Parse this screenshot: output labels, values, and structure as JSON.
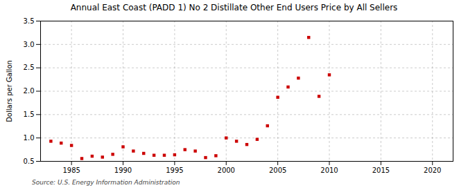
{
  "chart_data": {
    "type": "scatter",
    "title": "Annual East Coast (PADD 1) No 2 Distillate Other End Users Price by All Sellers",
    "ylabel": "Dollars per Gallon",
    "source": "Source: U.S. Energy Information Administration",
    "x": [
      1983,
      1984,
      1985,
      1986,
      1987,
      1988,
      1989,
      1990,
      1991,
      1992,
      1993,
      1994,
      1995,
      1996,
      1997,
      1998,
      1999,
      2000,
      2001,
      2002,
      2003,
      2004,
      2005,
      2006,
      2007,
      2008,
      2009,
      2010
    ],
    "values": [
      0.93,
      0.89,
      0.84,
      0.56,
      0.61,
      0.59,
      0.65,
      0.81,
      0.72,
      0.67,
      0.63,
      0.63,
      0.64,
      0.75,
      0.72,
      0.58,
      0.62,
      1.0,
      0.93,
      0.86,
      0.97,
      1.26,
      1.87,
      2.09,
      2.28,
      3.15,
      1.89,
      2.35
    ],
    "color": "#cc0000",
    "marker": "square",
    "xlim": [
      1982,
      2022
    ],
    "ylim": [
      0.5,
      3.5
    ],
    "xticks": [
      1985,
      1990,
      1995,
      2000,
      2005,
      2010,
      2015,
      2020
    ],
    "yticks": [
      0.5,
      {
        "value": 1.0,
        "label": "1.0"
      },
      1.5,
      {
        "value": 2.0,
        "label": "2.0"
      },
      2.5,
      {
        "value": 3.0,
        "label": "3.0"
      },
      3.5
    ],
    "grid": true
  }
}
